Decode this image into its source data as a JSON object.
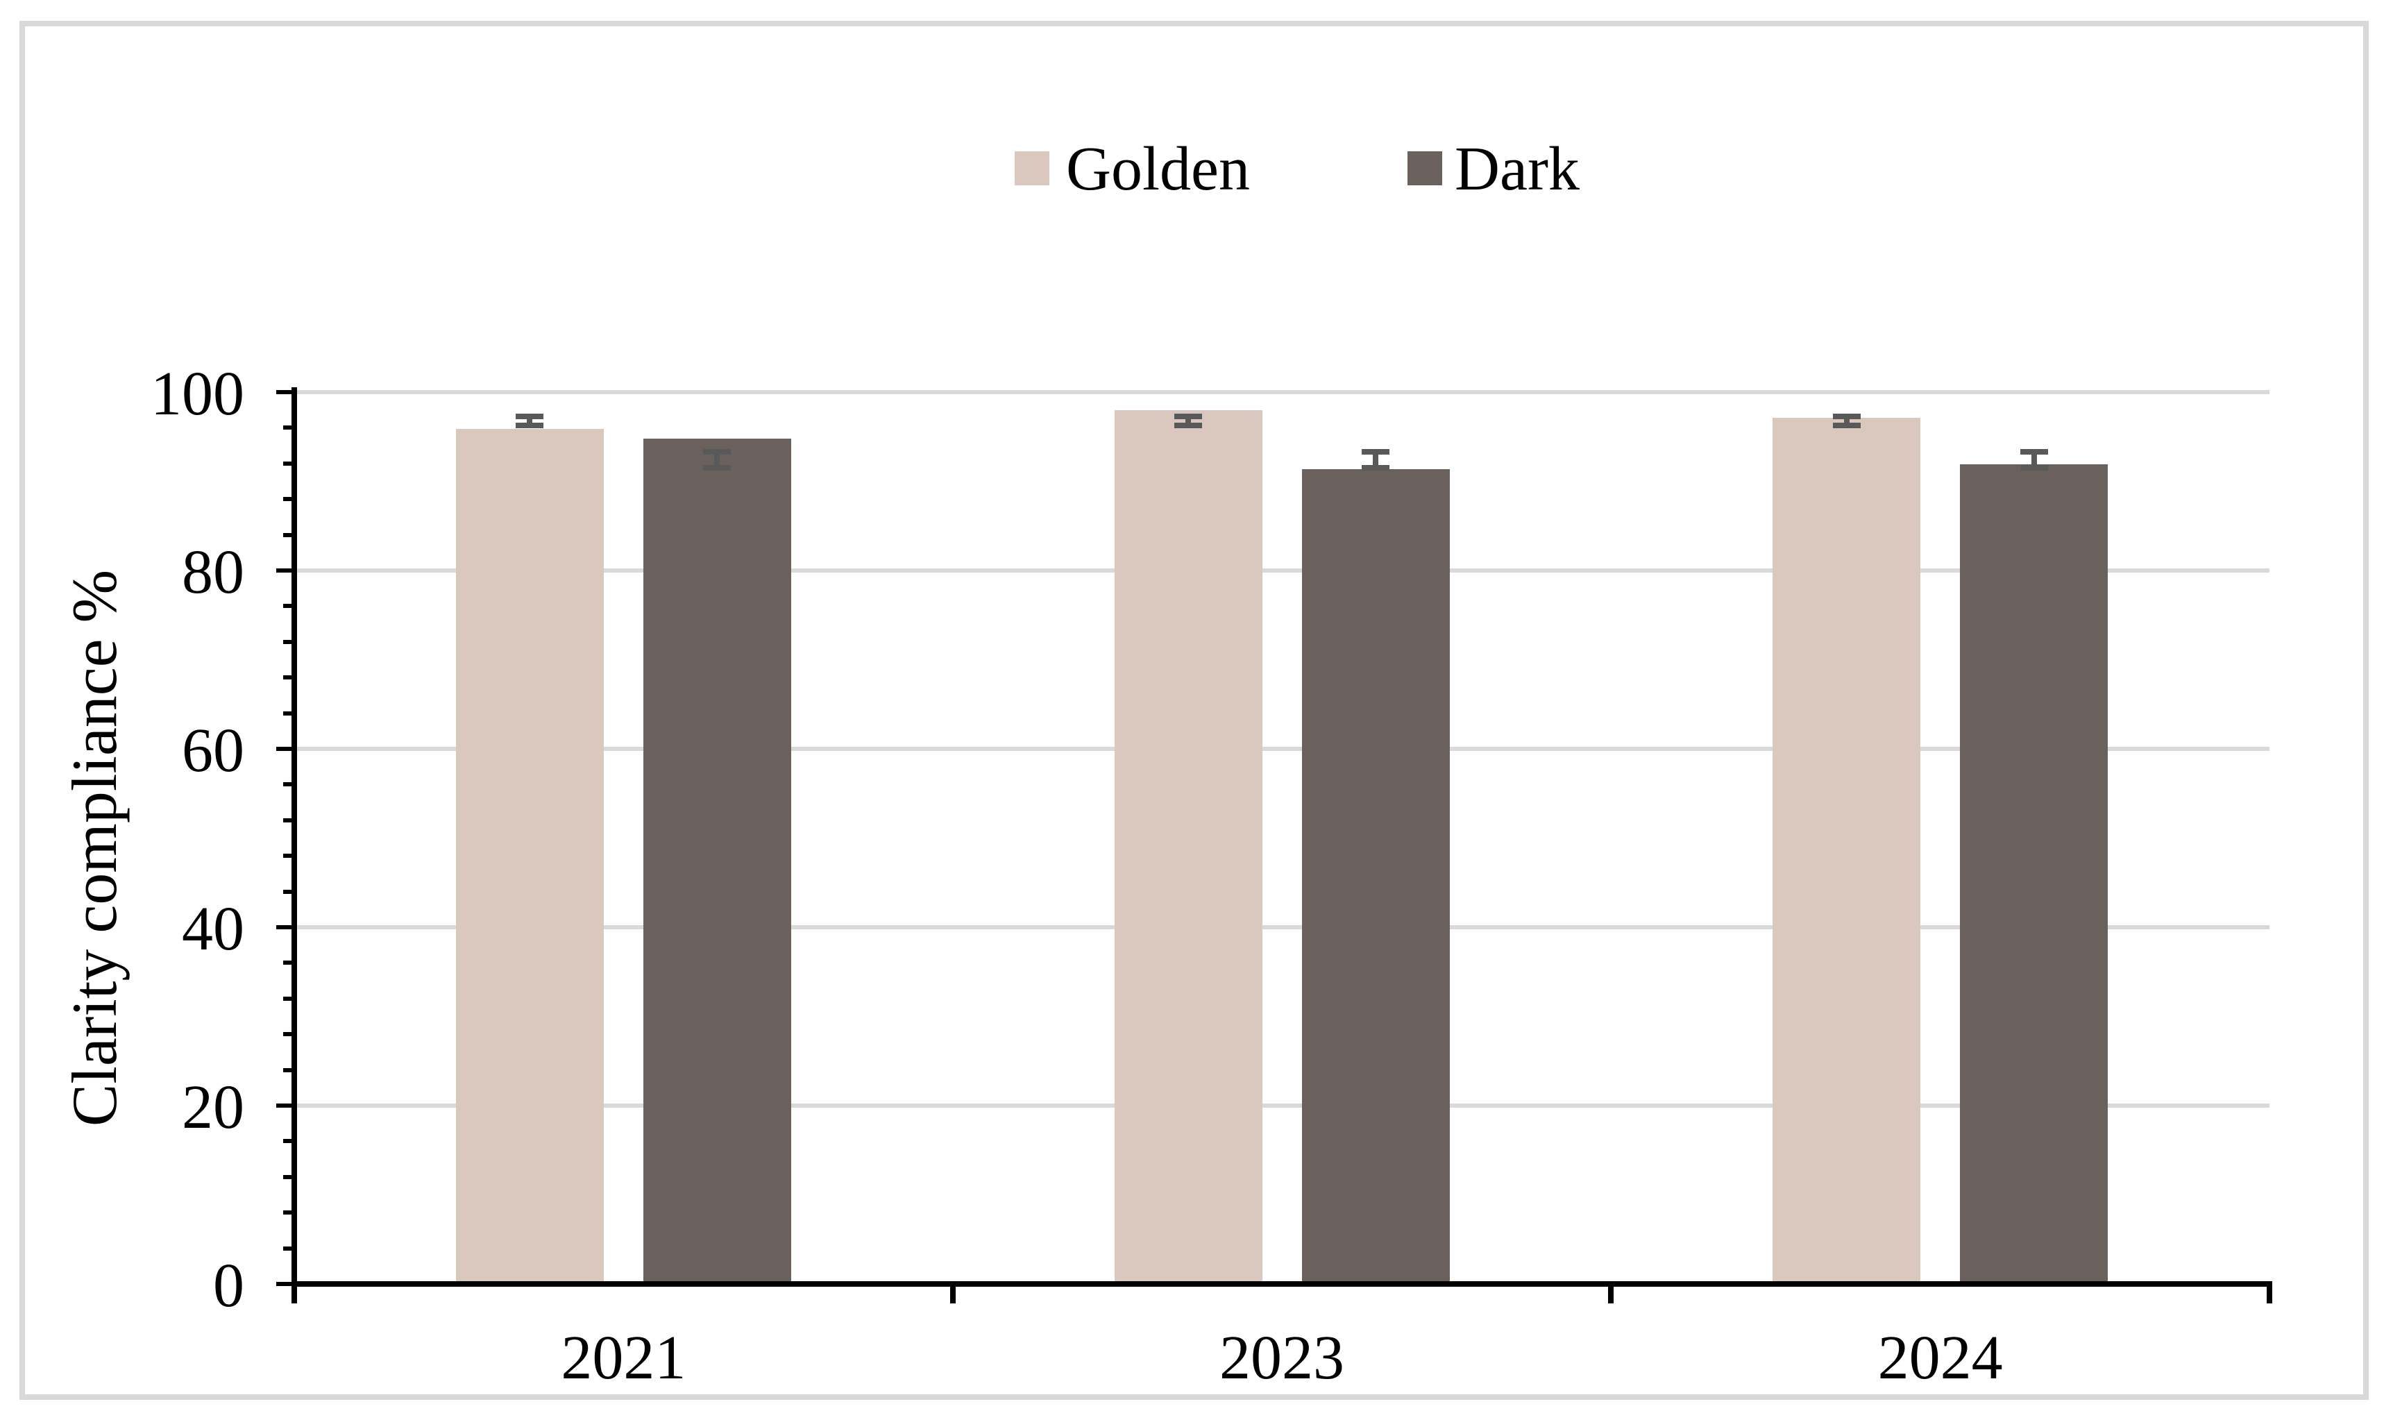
{
  "chart_data": {
    "type": "bar",
    "title": "",
    "categories": [
      "2021",
      "2023",
      "2024"
    ],
    "series": [
      {
        "name": "Golden",
        "color": "#DAC7BD",
        "values": [
          95.9,
          98.0,
          97.1
        ],
        "error_low": [
          96.3,
          96.3,
          96.3
        ],
        "error_high": [
          97.3,
          97.3,
          97.3
        ]
      },
      {
        "name": "Dark",
        "color": "#6A615C",
        "values": [
          94.8,
          91.4,
          91.9
        ],
        "error_low": [
          91.5,
          91.5,
          91.5
        ],
        "error_high": [
          93.3,
          93.3,
          93.3
        ]
      }
    ],
    "xlabel": "",
    "ylabel": "Clarity compliance %",
    "ylim": [
      0,
      100
    ],
    "yticks": [
      0,
      20,
      40,
      60,
      80,
      100
    ],
    "y_minor_unit": 4,
    "grid": "horizontal-major",
    "legend_position": "top-center",
    "error_bar_color": "#595959",
    "gridline_color": "#D9D9D9",
    "axis_color": "#000000",
    "frame_color": "#D9D9D9",
    "background": "#FFFFFF"
  },
  "legend": {
    "items": [
      {
        "label": "Golden"
      },
      {
        "label": "Dark"
      }
    ]
  },
  "y_axis": {
    "title": "Clarity compliance %",
    "tick_labels": [
      "0",
      "20",
      "40",
      "60",
      "80",
      "100"
    ]
  },
  "x_axis": {
    "tick_labels": [
      "2021",
      "2023",
      "2024"
    ]
  }
}
